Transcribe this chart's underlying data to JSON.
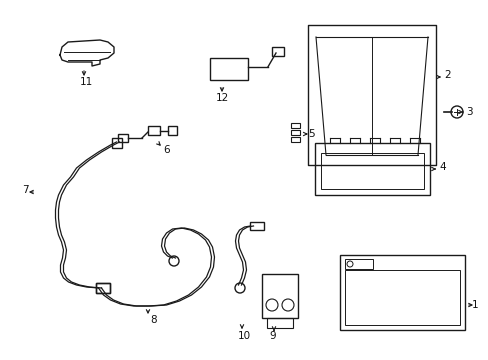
{
  "background_color": "#ffffff",
  "line_color": "#1a1a1a",
  "label_color": "#111111",
  "lw": 1.0
}
